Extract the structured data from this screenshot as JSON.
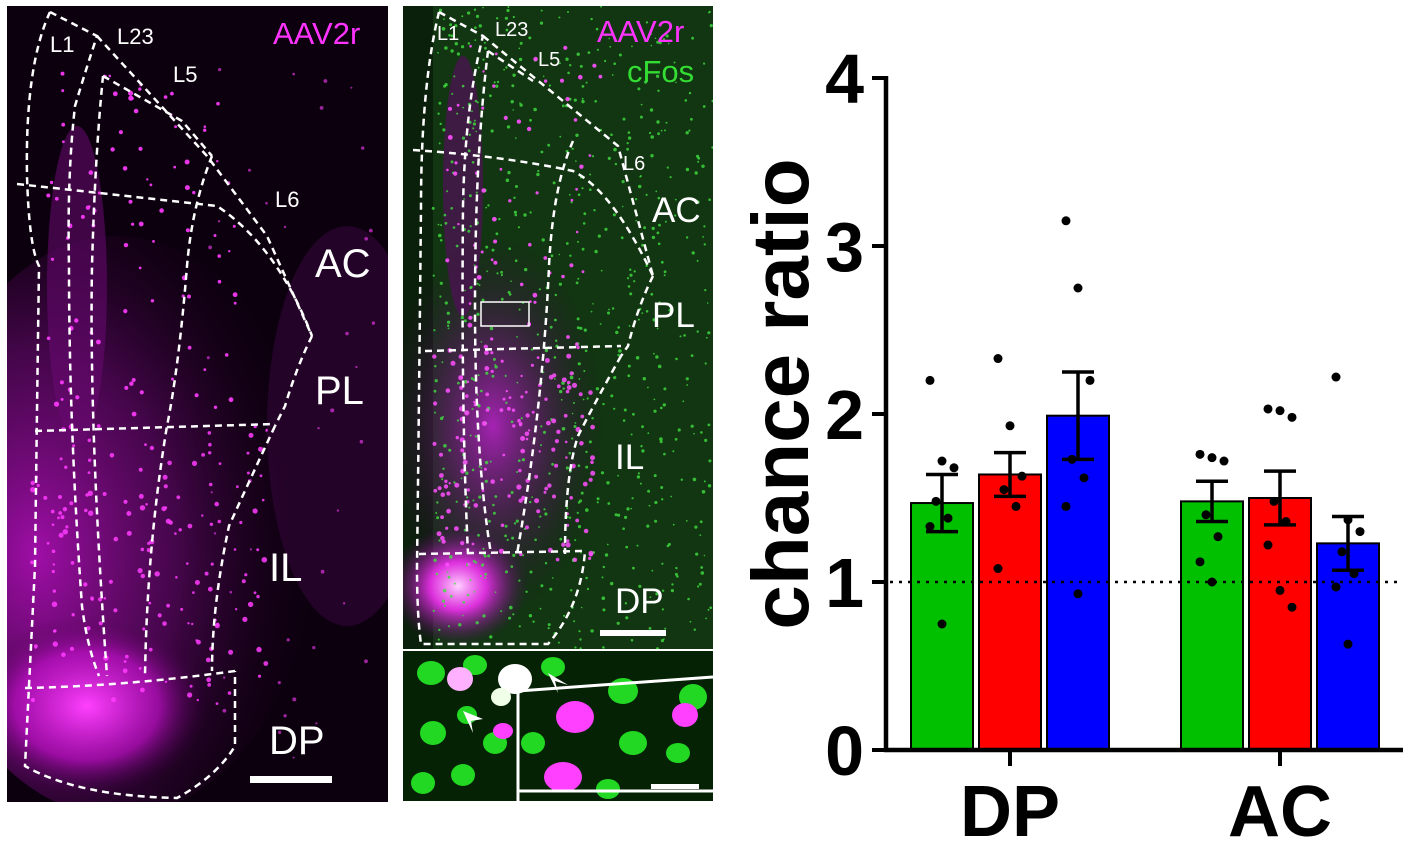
{
  "panel_a": {
    "marker_label": "AAV2r",
    "marker_color": "#ff33ff",
    "region_labels": {
      "l1": "L1",
      "l23": "L23",
      "l5": "L5",
      "l6": "L6",
      "ac": "AC",
      "pl": "PL",
      "il": "IL",
      "dp": "DP"
    }
  },
  "panel_b": {
    "marker_label_1": "AAV2r",
    "marker_label_2": "cFos",
    "marker_color_1": "#ff33ff",
    "marker_color_2": "#33dd33",
    "region_labels": {
      "l1": "L1",
      "l23": "L23",
      "l5": "L5",
      "l6": "L6",
      "ac": "AC",
      "pl": "PL",
      "il": "IL",
      "dp": "DP"
    }
  },
  "chart_data": {
    "type": "bar",
    "categories": [
      "DP",
      "AC"
    ],
    "ylabel": "chance ratio",
    "ylim": [
      0,
      4
    ],
    "yticks": [
      "0",
      "1",
      "2",
      "3",
      "4"
    ],
    "reference_line": 1,
    "series": [
      {
        "color": "#00c000",
        "values": [
          1.47,
          1.48
        ],
        "sem": [
          0.17,
          0.12
        ],
        "points": [
          [
            2.2,
            1.72,
            1.68,
            1.48,
            1.38,
            1.33,
            0.75
          ],
          [
            1.76,
            1.74,
            1.72,
            1.4,
            1.27,
            1.12,
            1.0
          ]
        ]
      },
      {
        "color": "#ff0000",
        "values": [
          1.64,
          1.5
        ],
        "sem": [
          0.13,
          0.16
        ],
        "points": [
          [
            2.33,
            1.93,
            1.63,
            1.55,
            1.45,
            1.08
          ],
          [
            2.03,
            2.02,
            1.98,
            1.48,
            1.36,
            1.22,
            0.95,
            0.85
          ]
        ]
      },
      {
        "color": "#0000ff",
        "values": [
          1.99,
          1.23
        ],
        "sem": [
          0.26,
          0.16
        ],
        "points": [
          [
            3.15,
            2.75,
            2.2,
            1.73,
            1.62,
            1.45,
            0.93
          ],
          [
            2.22,
            1.37,
            1.3,
            1.18,
            1.05,
            0.97,
            0.63
          ]
        ]
      }
    ]
  }
}
